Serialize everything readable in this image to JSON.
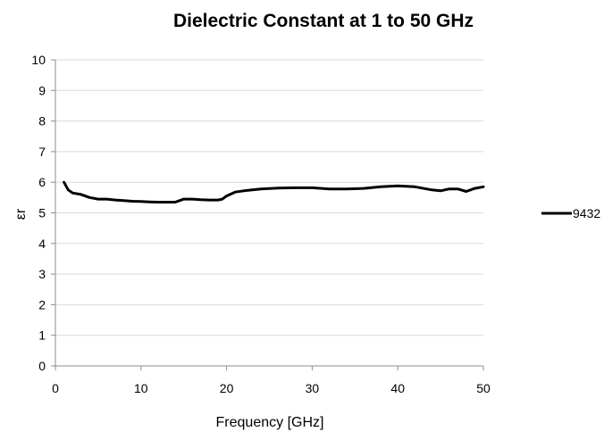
{
  "chart_data": {
    "type": "line",
    "title": "Dielectric Constant at 1 to 50 GHz",
    "xlabel": "Frequency [GHz]",
    "ylabel": "εr",
    "xlim": [
      0,
      50
    ],
    "ylim": [
      0,
      10
    ],
    "x_ticks": [
      0,
      10,
      20,
      30,
      40,
      50
    ],
    "y_ticks": [
      0,
      1,
      2,
      3,
      4,
      5,
      6,
      7,
      8,
      9,
      10
    ],
    "grid": "horizontal",
    "legend_position": "right",
    "series": [
      {
        "name": "9432",
        "color": "#000000",
        "x": [
          1,
          1.5,
          2,
          3,
          4,
          5,
          6,
          7,
          8,
          9,
          10,
          11,
          12,
          13,
          14,
          14.5,
          15,
          16,
          17,
          18,
          19,
          19.5,
          20,
          21,
          22,
          24,
          26,
          28,
          30,
          32,
          34,
          36,
          38,
          40,
          42,
          44,
          45,
          46,
          47,
          48,
          49,
          50
        ],
        "y": [
          6.0,
          5.75,
          5.65,
          5.6,
          5.5,
          5.45,
          5.45,
          5.42,
          5.4,
          5.38,
          5.37,
          5.36,
          5.35,
          5.35,
          5.35,
          5.4,
          5.45,
          5.45,
          5.43,
          5.42,
          5.42,
          5.45,
          5.55,
          5.68,
          5.72,
          5.78,
          5.81,
          5.82,
          5.82,
          5.78,
          5.78,
          5.8,
          5.85,
          5.88,
          5.85,
          5.75,
          5.72,
          5.78,
          5.78,
          5.7,
          5.8,
          5.85
        ]
      }
    ]
  }
}
